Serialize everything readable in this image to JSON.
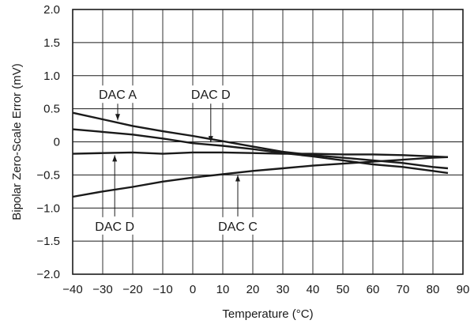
{
  "chart_data": {
    "type": "line",
    "xlabel": "Temperature (°C)",
    "ylabel": "Bipolar Zero-Scale Error (mV)",
    "xlim": [
      -40,
      90
    ],
    "ylim": [
      -2.0,
      2.0
    ],
    "x_ticks": [
      "−40",
      "−30",
      "−20",
      "−10",
      "0",
      "10",
      "20",
      "30",
      "40",
      "50",
      "60",
      "70",
      "80",
      "90"
    ],
    "y_ticks": [
      "2.0",
      "1.5",
      "1.0",
      "0.5",
      "0",
      "−0.5",
      "−1.0",
      "−1.5",
      "−2.0"
    ],
    "grid": true,
    "series": [
      {
        "name": "DAC A",
        "x": [
          -40,
          -30,
          -20,
          -10,
          0,
          10,
          20,
          30,
          40,
          50,
          60,
          70,
          80,
          85
        ],
        "y": [
          0.44,
          0.34,
          0.24,
          0.16,
          0.09,
          0.01,
          -0.07,
          -0.15,
          -0.2,
          -0.24,
          -0.28,
          -0.32,
          -0.38,
          -0.4
        ]
      },
      {
        "name": "DAC D",
        "x": [
          -40,
          -30,
          -20,
          -10,
          0,
          10,
          20,
          30,
          40,
          50,
          60,
          70,
          80,
          85
        ],
        "y": [
          0.19,
          0.15,
          0.11,
          0.05,
          -0.02,
          -0.06,
          -0.11,
          -0.17,
          -0.22,
          -0.28,
          -0.34,
          -0.38,
          -0.44,
          -0.47
        ]
      },
      {
        "name": "DAC D",
        "x": [
          -40,
          -30,
          -20,
          -10,
          0,
          10,
          20,
          30,
          40,
          50,
          60,
          70,
          80,
          85
        ],
        "y": [
          -0.18,
          -0.17,
          -0.16,
          -0.18,
          -0.16,
          -0.16,
          -0.17,
          -0.18,
          -0.18,
          -0.19,
          -0.19,
          -0.2,
          -0.22,
          -0.23
        ]
      },
      {
        "name": "DAC C",
        "x": [
          -40,
          -30,
          -20,
          -10,
          0,
          10,
          20,
          30,
          40,
          50,
          60,
          70,
          80,
          85
        ],
        "y": [
          -0.83,
          -0.75,
          -0.68,
          -0.6,
          -0.54,
          -0.49,
          -0.44,
          -0.4,
          -0.36,
          -0.33,
          -0.3,
          -0.27,
          -0.24,
          -0.23
        ]
      }
    ],
    "annotations": [
      {
        "text": "DAC A",
        "series": 0,
        "arrow_x": -25,
        "arrow_dir": "down",
        "label_y": 0.72
      },
      {
        "text": "DAC D",
        "series": 1,
        "arrow_x": 6,
        "arrow_dir": "down",
        "label_y": 0.72
      },
      {
        "text": "DAC D",
        "series": 2,
        "arrow_x": -26,
        "arrow_dir": "up",
        "label_y": -1.27
      },
      {
        "text": "DAC C",
        "series": 3,
        "arrow_x": 15,
        "arrow_dir": "up",
        "label_y": -1.27
      }
    ],
    "line_color": "#1a1a1a",
    "grid_color": "#1a1a1a"
  }
}
